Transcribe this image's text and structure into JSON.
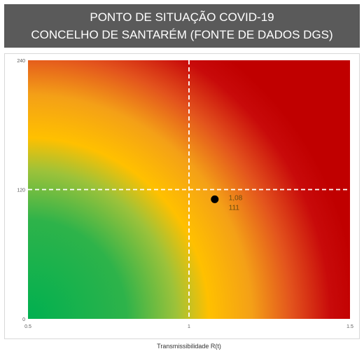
{
  "title": {
    "line1": "PONTO DE SITUAÇÃO COVID-19",
    "line2": "CONCELHO DE SANTARÉM (FONTE DE DADOS DGS)"
  },
  "colors": {
    "title_bg": "#5a5a5a",
    "green": "#00b050",
    "yellow": "#ffc000",
    "orange": "#ed7d31",
    "red": "#c00000",
    "threshold_line": "#ffffff",
    "point": "#000000"
  },
  "chart_data": {
    "type": "scatter",
    "xlabel": "Transmissibilidade R(t)",
    "ylabel": "",
    "xlim": [
      0.5,
      1.5
    ],
    "ylim": [
      0,
      240
    ],
    "x_ticks": [
      "0.5",
      "1",
      "1.5"
    ],
    "y_ticks": [
      "0",
      "120",
      "240"
    ],
    "thresholds": {
      "x": 1,
      "y": 120
    },
    "grid": false,
    "legend": "none",
    "background": "radial gradient green (origin) to yellow to orange to red (top-right)",
    "points": [
      {
        "x": 1.08,
        "y": 111,
        "labels": [
          "1,08",
          "111"
        ]
      }
    ]
  }
}
